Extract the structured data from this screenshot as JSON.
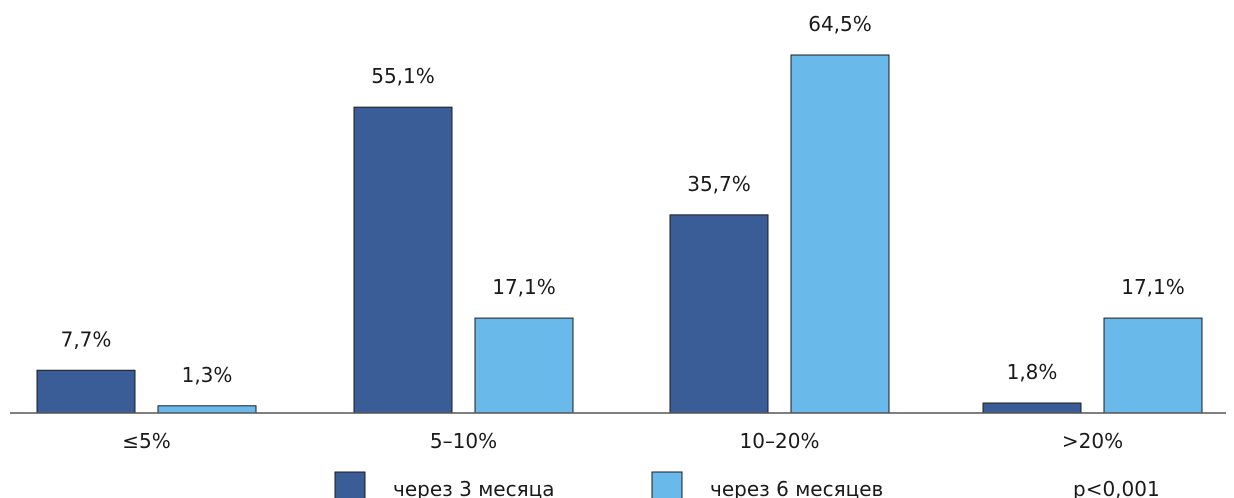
{
  "chart_data": {
    "type": "bar",
    "categories": [
      "≤5%",
      "5–10%",
      "10–20%",
      ">20%"
    ],
    "series": [
      {
        "name": "через 3 месяца",
        "color": "#3a5d98",
        "values": [
          7.7,
          55.1,
          35.7,
          1.8
        ],
        "labels": [
          "7,7%",
          "55,1%",
          "35,7%",
          "1,8%"
        ]
      },
      {
        "name": "через 6 месяцев",
        "color": "#6ab9eb",
        "values": [
          1.3,
          17.1,
          64.5,
          17.1
        ],
        "labels": [
          "1,3%",
          "17,1%",
          "64,5%",
          "17,1%"
        ]
      }
    ],
    "ylim": [
      0,
      70
    ],
    "grid": false,
    "legend_position": "bottom",
    "annotation": "p<0,001"
  }
}
